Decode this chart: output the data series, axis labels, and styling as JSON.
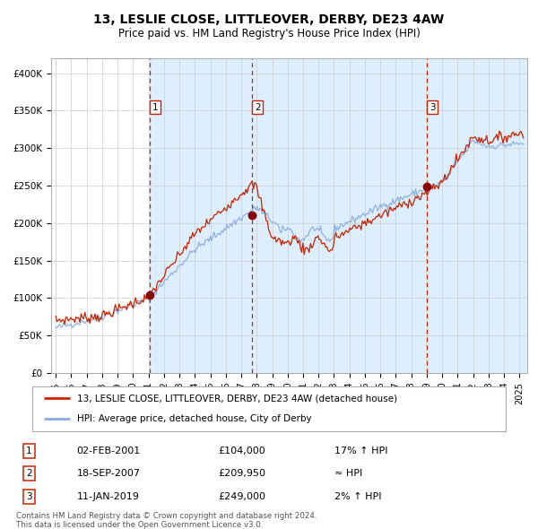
{
  "title": "13, LESLIE CLOSE, LITTLEOVER, DERBY, DE23 4AW",
  "subtitle": "Price paid vs. HM Land Registry's House Price Index (HPI)",
  "ylim": [
    0,
    420000
  ],
  "yticks": [
    0,
    50000,
    100000,
    150000,
    200000,
    250000,
    300000,
    350000,
    400000
  ],
  "ytick_labels": [
    "£0",
    "£50K",
    "£100K",
    "£150K",
    "£200K",
    "£250K",
    "£300K",
    "£350K",
    "£400K"
  ],
  "xlim_start": 1994.7,
  "xlim_end": 2025.5,
  "xtick_years": [
    1995,
    1996,
    1997,
    1998,
    1999,
    2000,
    2001,
    2002,
    2003,
    2004,
    2005,
    2006,
    2007,
    2008,
    2009,
    2010,
    2011,
    2012,
    2013,
    2014,
    2015,
    2016,
    2017,
    2018,
    2019,
    2020,
    2021,
    2022,
    2023,
    2024,
    2025
  ],
  "sale_points": [
    {
      "num": 1,
      "year": 2001.08,
      "price": 104000
    },
    {
      "num": 2,
      "year": 2007.72,
      "price": 209950
    },
    {
      "num": 3,
      "year": 2019.03,
      "price": 249000
    }
  ],
  "shade_x0": 2001.08,
  "shade_x1": 2025.5,
  "hpi_line_color": "#88aadd",
  "price_line_color": "#cc2200",
  "sale_marker_color": "#880000",
  "vline_color": "#cc2200",
  "shade_color": "#ddeeff",
  "background_color": "#ffffff",
  "grid_color": "#cccccc",
  "legend_label_price": "13, LESLIE CLOSE, LITTLEOVER, DERBY, DE23 4AW (detached house)",
  "legend_label_hpi": "HPI: Average price, detached house, City of Derby",
  "footer_line1": "Contains HM Land Registry data © Crown copyright and database right 2024.",
  "footer_line2": "This data is licensed under the Open Government Licence v3.0.",
  "table_rows": [
    {
      "num": 1,
      "date": "02-FEB-2001",
      "price": "£104,000",
      "hpi": "17% ↑ HPI"
    },
    {
      "num": 2,
      "date": "18-SEP-2007",
      "price": "£209,950",
      "hpi": "≈ HPI"
    },
    {
      "num": 3,
      "date": "11-JAN-2019",
      "price": "£249,000",
      "hpi": "2% ↑ HPI"
    }
  ]
}
